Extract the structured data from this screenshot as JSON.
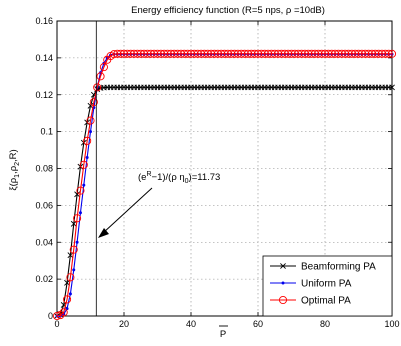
{
  "chart_data": {
    "type": "line",
    "title": "Energy efficiency function (R=5 nps, ρ =10dB)",
    "xlabel": "P",
    "ylabel": "ξ(ρ₁,ρ₂,R)",
    "xlim": [
      0,
      100
    ],
    "ylim": [
      0,
      0.16
    ],
    "xticks": [
      "0",
      "20",
      "40",
      "60",
      "80",
      "100"
    ],
    "yticks": [
      "0",
      "0.02",
      "0.04",
      "0.06",
      "0.08",
      "0.1",
      "0.12",
      "0.14",
      "0.16"
    ],
    "grid": true,
    "legend_position": "bottom-right",
    "series": [
      {
        "name": "Beamforming PA",
        "color": "#000000",
        "marker": "x",
        "x": [
          0,
          1,
          2,
          3,
          4,
          5,
          6,
          7,
          8,
          9,
          10,
          11,
          12,
          13,
          14,
          15,
          16,
          18,
          20,
          25,
          30,
          40,
          50,
          60,
          70,
          80,
          90,
          100
        ],
        "y": [
          0,
          0.001,
          0.006,
          0.018,
          0.033,
          0.05,
          0.066,
          0.081,
          0.094,
          0.105,
          0.114,
          0.12,
          0.123,
          0.1237,
          0.1239,
          0.124,
          0.124,
          0.124,
          0.124,
          0.124,
          0.124,
          0.124,
          0.124,
          0.124,
          0.124,
          0.124,
          0.124,
          0.124
        ]
      },
      {
        "name": "Uniform PA",
        "color": "#0000ee",
        "marker": "dot",
        "x": [
          0,
          1,
          2,
          3,
          4,
          5,
          6,
          7,
          8,
          9,
          10,
          11,
          12,
          13,
          14,
          15,
          16,
          17,
          18,
          19,
          20,
          25,
          30,
          40,
          50,
          60,
          70,
          80,
          90,
          100
        ],
        "y": [
          0,
          0,
          0.001,
          0.004,
          0.012,
          0.025,
          0.04,
          0.056,
          0.071,
          0.086,
          0.1,
          0.113,
          0.124,
          0.132,
          0.137,
          0.14,
          0.1415,
          0.142,
          0.142,
          0.142,
          0.142,
          0.142,
          0.142,
          0.142,
          0.142,
          0.142,
          0.142,
          0.142,
          0.142,
          0.142
        ]
      },
      {
        "name": "Optimal PA",
        "color": "#ff0000",
        "marker": "circle",
        "x": [
          0,
          1,
          2,
          3,
          4,
          5,
          6,
          7,
          8,
          9,
          10,
          11,
          12,
          13,
          14,
          15,
          16,
          17,
          18,
          19,
          20,
          25,
          30,
          40,
          50,
          60,
          70,
          80,
          90,
          100
        ],
        "y": [
          0,
          0.0005,
          0.002,
          0.009,
          0.021,
          0.036,
          0.053,
          0.068,
          0.082,
          0.095,
          0.106,
          0.116,
          0.124,
          0.13,
          0.135,
          0.139,
          0.141,
          0.142,
          0.1422,
          0.1422,
          0.1422,
          0.1422,
          0.1422,
          0.1422,
          0.1422,
          0.1422,
          0.1422,
          0.1422,
          0.1422,
          0.1422
        ]
      }
    ],
    "annotation": {
      "text": "(e^R−1)/(ρ η_0)=11.73",
      "x": 11.73
    }
  }
}
